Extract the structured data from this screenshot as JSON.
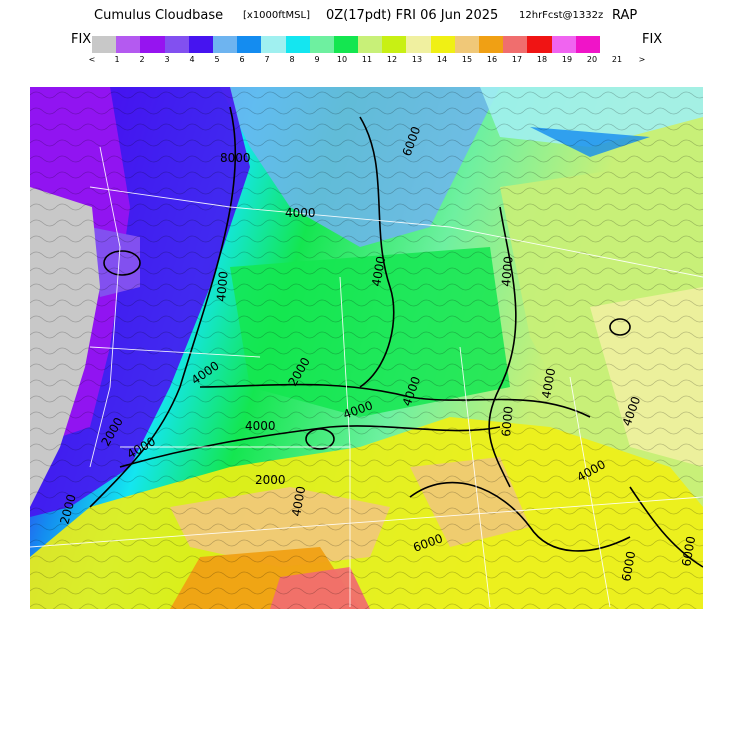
{
  "title": {
    "main": "Cumulus Cloudbase",
    "units": "[x1000ftMSL]",
    "time": "0Z(17pdt)  FRI 06 Jun 2025",
    "forecast": "12hrFcst@1332z",
    "model": "RAP"
  },
  "legend": {
    "fix_left": "FIX",
    "fix_right": "FIX",
    "swatches": [
      "#c8c8c8",
      "#b45af0",
      "#9614f0",
      "#8250f0",
      "#4614f0",
      "#6eb4f0",
      "#148cf0",
      "#a0f0f0",
      "#14e6f0",
      "#6ef0a0",
      "#14e650",
      "#c8f078",
      "#c8f014",
      "#f0f0a0",
      "#f0f014",
      "#f0c878",
      "#f0a014",
      "#f06e6e",
      "#f01414",
      "#f064f0",
      "#f014c8"
    ],
    "ticks": [
      "<",
      "1",
      "2",
      "3",
      "4",
      "5",
      "6",
      "7",
      "8",
      "9",
      "10",
      "11",
      "12",
      "13",
      "14",
      "15",
      "16",
      "17",
      "18",
      "19",
      "20",
      "21",
      ">"
    ]
  },
  "map": {
    "contour_labels": [
      "8000",
      "4000",
      "6000",
      "4000",
      "4000",
      "4000",
      "4000",
      "2000",
      "4000",
      "4000",
      "2000",
      "4000",
      "4000",
      "6000",
      "4000",
      "4000",
      "4000",
      "6000",
      "6000",
      "6000",
      "4000",
      "2000",
      "2000"
    ]
  }
}
